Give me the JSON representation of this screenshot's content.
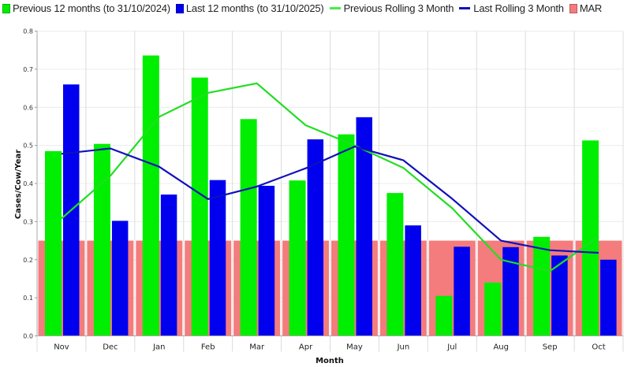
{
  "chart_data": {
    "type": "bar",
    "title": "",
    "xlabel": "Month",
    "ylabel": "Cases/Cow/Year",
    "ylim": [
      0,
      0.8
    ],
    "yticks": [
      "0.0",
      "0.1",
      "0.2",
      "0.3",
      "0.4",
      "0.5",
      "0.6",
      "0.7",
      "0.8"
    ],
    "grid": true,
    "legend_position": "top",
    "categories": [
      "Nov",
      "Dec",
      "Jan",
      "Feb",
      "Mar",
      "Apr",
      "May",
      "Jun",
      "Jul",
      "Aug",
      "Sep",
      "Oct"
    ],
    "series": [
      {
        "name": "Previous 12 months (to 31/10/2024)",
        "type": "bar",
        "color": "#00ee00",
        "values": [
          0.485,
          0.504,
          0.736,
          0.678,
          0.569,
          0.408,
          0.529,
          0.375,
          0.105,
          0.14,
          0.26,
          0.513
        ]
      },
      {
        "name": "Last 12 months (to 31/10/2025)",
        "type": "bar",
        "color": "#0000ee",
        "values": [
          0.66,
          0.302,
          0.371,
          0.409,
          0.394,
          0.516,
          0.574,
          0.29,
          0.234,
          0.233,
          0.211,
          0.2
        ]
      },
      {
        "name": "Previous Rolling 3 Month",
        "type": "line",
        "color": "#22dd22",
        "values": [
          0.308,
          0.42,
          0.575,
          0.638,
          0.663,
          0.553,
          0.5,
          0.441,
          0.335,
          0.2,
          0.17,
          0.26
        ]
      },
      {
        "name": "Last Rolling 3 Month",
        "type": "line",
        "color": "#1010bb",
        "values": [
          0.478,
          0.492,
          0.444,
          0.359,
          0.392,
          0.44,
          0.497,
          0.461,
          0.36,
          0.25,
          0.225,
          0.218
        ]
      },
      {
        "name": "MAR",
        "type": "bar",
        "color": "#f47c7c",
        "values": [
          0.25,
          0.25,
          0.25,
          0.25,
          0.25,
          0.25,
          0.25,
          0.25,
          0.25,
          0.25,
          0.25,
          0.25
        ]
      }
    ]
  }
}
